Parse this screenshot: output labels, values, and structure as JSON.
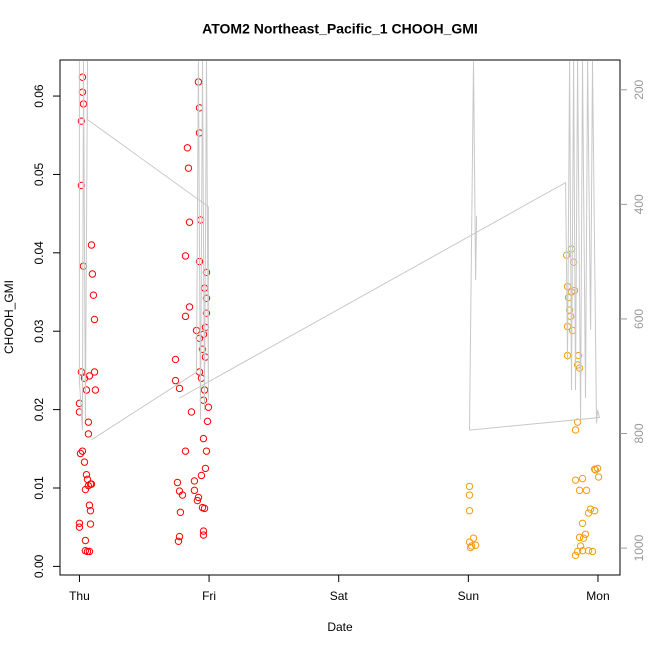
{
  "chart_data": {
    "type": "scatter",
    "title": "ATOM2 Northeast_Pacific_1 CHOOH_GMI",
    "xlabel": "Date",
    "ylabel": "CHOOH_GMI",
    "xlim": [
      -0.15,
      4.17
    ],
    "xticks": [
      {
        "value": 0,
        "label": "Thu"
      },
      {
        "value": 1,
        "label": "Fri"
      },
      {
        "value": 2,
        "label": "Sat"
      },
      {
        "value": 3,
        "label": "Sun"
      },
      {
        "value": 4,
        "label": "Mon"
      }
    ],
    "ylim": [
      -0.0011,
      0.0646
    ],
    "yticks": [
      {
        "value": 0,
        "label": "0.00"
      },
      0.01,
      0.02,
      0.03,
      0.04,
      0.05,
      0.06
    ],
    "y2lim": [
      1047,
      148
    ],
    "y2ticks": [
      200,
      400,
      600,
      800,
      1000
    ],
    "series": [
      {
        "color": "#ff0000",
        "x": [
          0.023,
          0.023,
          0.031,
          0.015,
          0.015,
          0.031,
          0.093,
          0.1,
          0.108,
          0.116,
          0.015,
          0.039,
          0.077,
          0.116,
          0.054,
          0.123,
          0,
          0,
          0.069,
          0.069,
          0.023,
          0.008,
          0.039,
          0.054,
          0.062,
          0.069,
          0.085,
          0.046,
          0.093,
          0.077,
          0.085,
          0,
          0,
          0.085,
          0.046,
          0.046,
          0.062,
          0.077,
          0.833,
          0.841,
          0.849,
          0.818,
          0.918,
          0.926,
          0.926,
          0.934,
          0.926,
          0.98,
          0.965,
          0.98,
          0.98,
          0.818,
          0.849,
          0.741,
          0.741,
          0.772,
          0.903,
          0.926,
          0.957,
          0.972,
          0.949,
          0.972,
          0.926,
          0.941,
          0.965,
          0.957,
          0.995,
          0.988,
          0.864,
          0.957,
          0.98,
          0.972,
          0.818,
          0.756,
          0.887,
          0.941,
          0.772,
          0.795,
          0.887,
          0.91,
          0.949,
          0.965,
          0.918,
          0.779,
          0.772,
          0.764,
          0.957,
          0.957
        ],
        "values": [
          0.0624,
          0.0605,
          0.059,
          0.0568,
          0.0486,
          0.0383,
          0.041,
          0.0373,
          0.0346,
          0.0315,
          0.0248,
          0.024,
          0.0243,
          0.0248,
          0.0225,
          0.0225,
          0.0208,
          0.0197,
          0.0184,
          0.0169,
          0.0147,
          0.0144,
          0.0133,
          0.0117,
          0.0111,
          0.0103,
          0.0105,
          0.0098,
          0.0105,
          0.0078,
          0.0071,
          0.0055,
          0.005,
          0.0054,
          0.0033,
          0.002,
          0.0019,
          0.0019,
          0.0534,
          0.0508,
          0.0439,
          0.0396,
          0.0618,
          0.0585,
          0.0553,
          0.0442,
          0.0389,
          0.0375,
          0.0355,
          0.0342,
          0.0323,
          0.0319,
          0.0331,
          0.0264,
          0.0237,
          0.0227,
          0.0301,
          0.0291,
          0.0296,
          0.0305,
          0.0277,
          0.0267,
          0.0248,
          0.024,
          0.0225,
          0.0212,
          0.0203,
          0.0185,
          0.0197,
          0.0163,
          0.0147,
          0.0125,
          0.0147,
          0.0107,
          0.0109,
          0.0116,
          0.0096,
          0.0091,
          0.0097,
          0.0084,
          0.0075,
          0.0074,
          0.0088,
          0.0069,
          0.0038,
          0.0032,
          0.0045,
          0.004
        ]
      },
      {
        "color": "#f39c12",
        "x": [
          3.009,
          3.009,
          3.009,
          3.04,
          3.056,
          3.025,
          3.009,
          3.017,
          3.758,
          3.796,
          3.812,
          3.765,
          3.773,
          3.796,
          3.819,
          3.781,
          3.789,
          3.765,
          3.804,
          3.85,
          3.765,
          3.858,
          3.843,
          3.843,
          3.827,
          3.827,
          3.858,
          3.881,
          3.912,
          3.981,
          3.997,
          4.005,
          3.974,
          3.943,
          3.927,
          3.974,
          3.881,
          3.858,
          3.889,
          3.927,
          3.881,
          3.843,
          3.827,
          3.958,
          3.866,
          3.904
        ],
        "values": [
          0.0102,
          0.0091,
          0.0071,
          0.0036,
          0.0027,
          0.0026,
          0.0031,
          0.0024,
          0.0397,
          0.0405,
          0.0388,
          0.0357,
          0.0343,
          0.035,
          0.0352,
          0.0327,
          0.0319,
          0.0306,
          0.0301,
          0.0269,
          0.0269,
          0.0253,
          0.0257,
          0.0184,
          0.0174,
          0.011,
          0.0097,
          0.0112,
          0.0097,
          0.0123,
          0.0125,
          0.0114,
          0.0124,
          0.0073,
          0.0068,
          0.0071,
          0.0055,
          0.0037,
          0.0036,
          0.002,
          0.002,
          0.0019,
          0.0014,
          0.0019,
          0.0026,
          0.0041
        ]
      },
      {
        "color": "#c8c8c8",
        "mark": "line",
        "axis": "y2",
        "x": [
          0,
          0,
          0.023,
          0.031,
          0.046,
          0.062,
          0.062,
          0.995,
          0.995,
          0.98,
          0.965,
          0.949,
          0.934,
          0.918,
          0.903,
          0.093,
          null,
          0.772,
          3.75,
          3.765,
          3.781,
          3.796,
          3.812,
          3.827,
          3.843,
          3.866,
          3.881,
          3.904,
          3.92,
          3.943,
          3.958,
          3.989,
          3.997,
          4.012,
          3.009,
          3.04,
          3.056,
          3.064
        ],
        "values": [
          150,
          707,
          794,
          150,
          776,
          150,
          252,
          404,
          741,
          150,
          759,
          150,
          776,
          150,
          693,
          811,
          null,
          738,
          362,
          672,
          150,
          724,
          150,
          724,
          150,
          776,
          150,
          738,
          150,
          619,
          150,
          782,
          759,
          772,
          794,
          150,
          532,
          420
        ]
      }
    ]
  }
}
